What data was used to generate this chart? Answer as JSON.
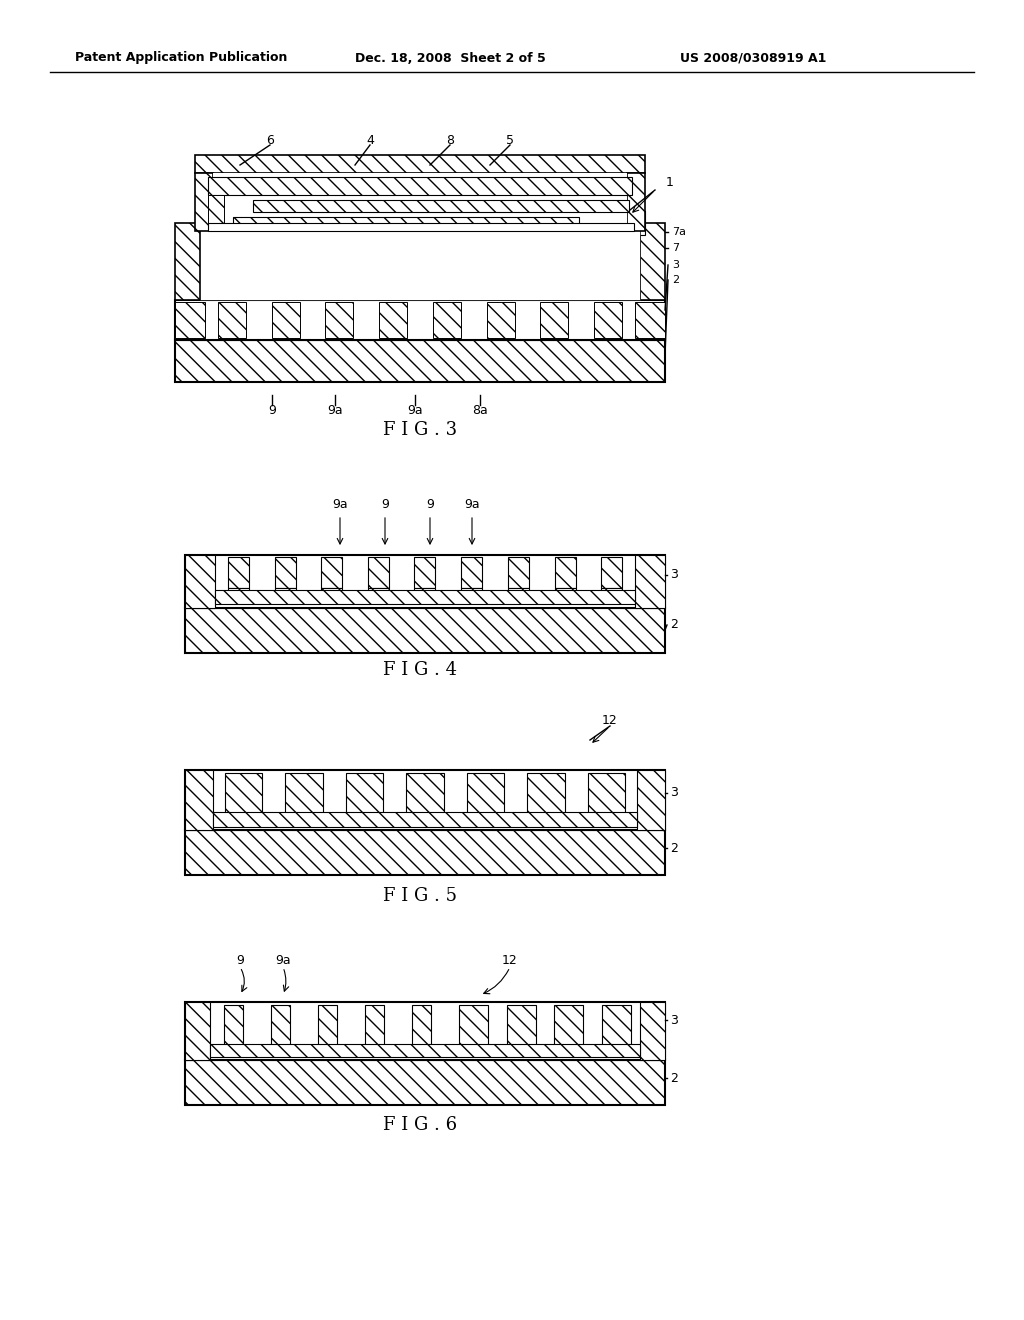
{
  "header_left": "Patent Application Publication",
  "header_mid": "Dec. 18, 2008  Sheet 2 of 5",
  "header_right": "US 2008/0308919 A1",
  "fig3_label": "F I G . 3",
  "fig4_label": "F I G . 4",
  "fig5_label": "F I G . 5",
  "fig6_label": "F I G . 6",
  "bg_color": "#ffffff",
  "line_color": "#000000"
}
